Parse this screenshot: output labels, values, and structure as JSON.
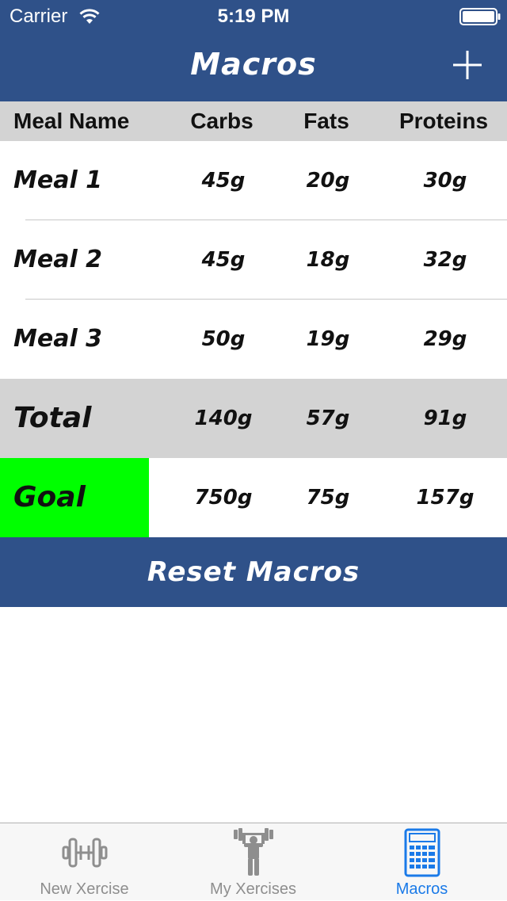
{
  "status_bar": {
    "carrier": "Carrier",
    "time": "5:19 PM"
  },
  "nav": {
    "title": "Macros",
    "add_icon": "plus-icon"
  },
  "table": {
    "headers": {
      "name": "Meal Name",
      "carbs": "Carbs",
      "fats": "Fats",
      "proteins": "Proteins"
    },
    "meals": [
      {
        "name": "Meal 1",
        "carbs": "45g",
        "fats": "20g",
        "proteins": "30g"
      },
      {
        "name": "Meal 2",
        "carbs": "45g",
        "fats": "18g",
        "proteins": "32g"
      },
      {
        "name": "Meal 3",
        "carbs": "50g",
        "fats": "19g",
        "proteins": "29g"
      }
    ],
    "total": {
      "name": "Total",
      "carbs": "140g",
      "fats": "57g",
      "proteins": "91g"
    },
    "goal": {
      "name": "Goal",
      "carbs": "750g",
      "fats": "75g",
      "proteins": "157g"
    }
  },
  "reset_label": "Reset Macros",
  "tabbar": {
    "tabs": [
      {
        "label": "New Xercise",
        "icon": "dumbbell-icon",
        "active": false
      },
      {
        "label": "My Xercises",
        "icon": "weightlifter-icon",
        "active": false
      },
      {
        "label": "Macros",
        "icon": "calculator-icon",
        "active": true
      }
    ]
  },
  "colors": {
    "nav_bg": "#2f5189",
    "header_bg": "#d3d3d3",
    "goal_highlight": "#00ff00",
    "active_tab": "#1a7ae8",
    "inactive_tab": "#8e8e8e"
  }
}
